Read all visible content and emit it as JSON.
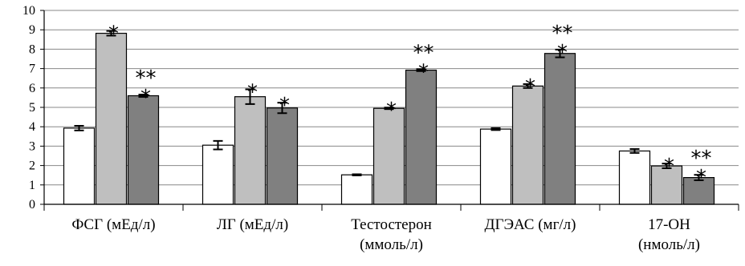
{
  "chart_data": {
    "type": "bar",
    "title": "",
    "xlabel": "",
    "ylabel": "",
    "ylim": [
      0,
      10
    ],
    "yticks": [
      0,
      1,
      2,
      3,
      4,
      5,
      6,
      7,
      8,
      9,
      10
    ],
    "grid": "horizontal",
    "legend": "none",
    "categories": [
      [
        "ФСГ (мЕд/л)"
      ],
      [
        "ЛГ (мЕд/л)"
      ],
      [
        "Тестостерон",
        "(ммоль/л)"
      ],
      [
        "ДГЭАС (мг/л)"
      ],
      [
        "17-ОН",
        "(нмоль/л)"
      ]
    ],
    "series": [
      {
        "color": "#ffffff",
        "values": [
          3.93,
          3.05,
          1.52,
          3.88,
          2.75
        ],
        "errors": [
          0.12,
          0.22,
          0.03,
          0.05,
          0.1
        ],
        "marks": [
          "",
          "",
          "",
          "",
          ""
        ]
      },
      {
        "color": "#bfbfbf",
        "values": [
          8.82,
          5.55,
          4.95,
          6.1,
          1.98
        ],
        "errors": [
          0.12,
          0.38,
          0.04,
          0.1,
          0.12
        ],
        "marks": [
          "*",
          "*",
          "*",
          "*",
          "*"
        ]
      },
      {
        "color": "#808080",
        "values": [
          5.6,
          4.97,
          6.92,
          7.78,
          1.38
        ],
        "errors": [
          0.06,
          0.27,
          0.05,
          0.2,
          0.14
        ],
        "marks": [
          "**\n*",
          "*",
          "**\n*",
          "**\n*",
          "**\n*"
        ]
      }
    ]
  }
}
